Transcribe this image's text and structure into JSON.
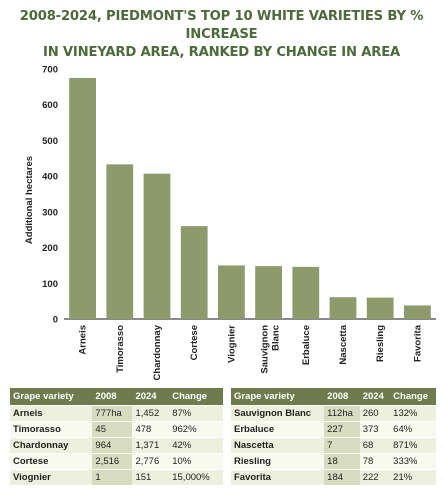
{
  "title_line1": "2008-2024, PIEDMONT'S TOP 10 WHITE VARIETIES BY % INCREASE",
  "title_line2": "IN VINEYARD AREA, RANKED BY CHANGE IN AREA",
  "chart_data": {
    "type": "bar",
    "ylabel": "Additional hectares",
    "xlabel": "",
    "ylim": [
      0,
      700
    ],
    "yticks": [
      0,
      100,
      200,
      300,
      400,
      500,
      600,
      700
    ],
    "grid": false,
    "categories": [
      "Arneis",
      "Timorasso",
      "Chardonnay",
      "Cortese",
      "Viognier",
      "Sauvignon Blanc",
      "Erbaluce",
      "Nascetta",
      "Riesling",
      "Favorita"
    ],
    "values": [
      675,
      433,
      407,
      260,
      150,
      148,
      146,
      61,
      60,
      38
    ],
    "bar_color": "#8c9a6c"
  },
  "table_headers": [
    "Grape variety",
    "2008",
    "2024",
    "Change"
  ],
  "table_left": [
    [
      "Arneis",
      "777ha",
      "1,452",
      "87%"
    ],
    [
      "Timorasso",
      "45",
      "478",
      "962%"
    ],
    [
      "Chardonnay",
      "964",
      "1,371",
      "42%"
    ],
    [
      "Cortese",
      "2,516",
      "2,776",
      "10%"
    ],
    [
      "Viognier",
      "1",
      "151",
      "15,000%"
    ]
  ],
  "table_right": [
    [
      "Sauvignon Blanc",
      "112ha",
      "260",
      "132%"
    ],
    [
      "Erbaluce",
      "227",
      "373",
      "64%"
    ],
    [
      "Nascetta",
      "7",
      "68",
      "871%"
    ],
    [
      "Riesling",
      "18",
      "78",
      "333%"
    ],
    [
      "Favorita",
      "184",
      "222",
      "21%"
    ]
  ]
}
